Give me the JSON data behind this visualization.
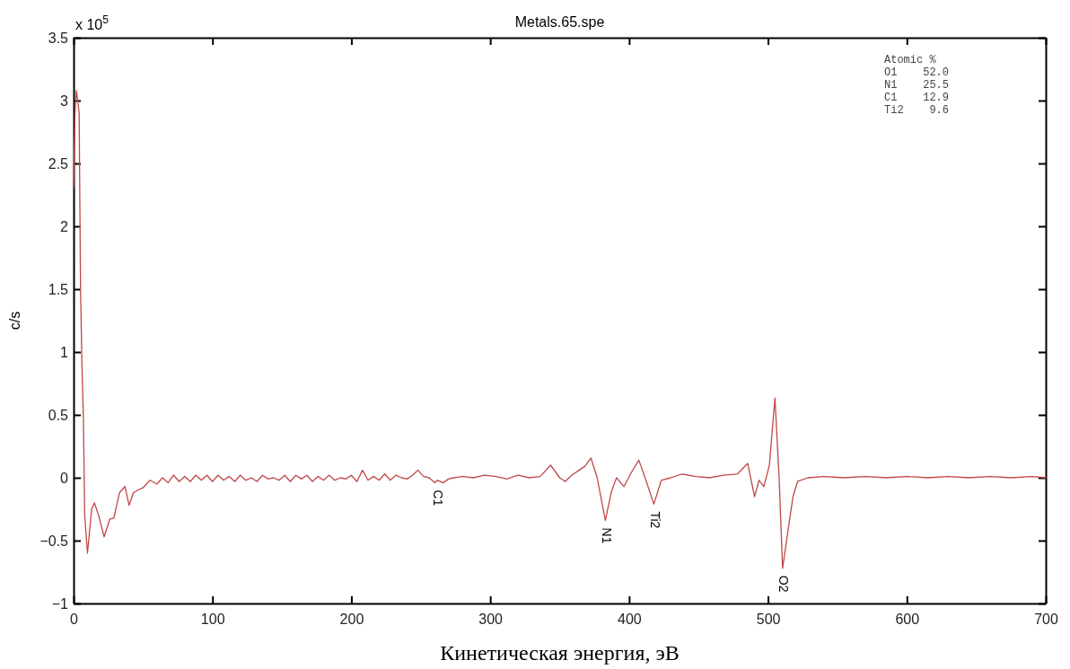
{
  "chart_data": {
    "type": "line",
    "title": "Metals.65.spe",
    "xlabel": "Кинетическая энергия, эВ",
    "ylabel": "c/s",
    "xlim": [
      0,
      700
    ],
    "xticks": [
      0,
      100,
      200,
      300,
      400,
      500,
      600,
      700
    ],
    "ylim": [
      -1,
      3.5
    ],
    "yticks": [
      -1,
      -0.5,
      0,
      0.5,
      1,
      1.5,
      2,
      2.5,
      3,
      3.5
    ],
    "grid": false,
    "marker": "none",
    "line_style": "solid",
    "annotations": [
      "x 10$^{5}$",
      "Atomic %",
      "O1    52.0",
      "N1    25.5",
      "C1    12.9",
      "Ti2    9.6",
      {
        "text": "C1",
        "x": 262,
        "y": -0.04
      },
      {
        "text": "N1",
        "x": 383,
        "y": -0.34
      },
      {
        "text": "Ti2",
        "x": 418,
        "y": -0.21
      },
      {
        "text": "O2",
        "x": 510.5,
        "y": -0.72
      }
    ],
    "series": [
      {
        "color": "#c04848",
        "x": [
          0,
          1,
          2,
          3,
          4,
          5,
          6,
          7,
          8,
          10,
          13,
          15,
          18,
          22,
          26,
          29,
          33,
          37,
          40,
          43,
          46,
          50,
          55,
          60,
          64,
          68,
          72,
          76,
          80,
          84,
          88,
          92,
          96,
          100,
          104,
          108,
          112,
          116,
          120,
          124,
          128,
          132,
          136,
          140,
          144,
          148,
          152,
          156,
          160,
          164,
          168,
          172,
          176,
          180,
          184,
          188,
          192,
          196,
          200,
          204,
          208,
          212,
          216,
          220,
          224,
          228,
          232,
          236,
          240,
          244,
          248,
          252,
          256,
          260,
          262,
          266,
          270,
          274,
          280,
          288,
          296,
          304,
          312,
          320,
          328,
          336,
          343.5,
          350,
          354,
          358.6,
          364,
          368,
          372.5,
          377,
          382.9,
          387,
          390.9,
          396.3,
          402,
          407,
          412.4,
          417.8,
          423.2,
          430,
          438,
          448,
          458,
          468,
          478,
          485.4,
          490.3,
          493.6,
          497,
          501,
          505,
          508,
          510.5,
          514.8,
          518,
          521.3,
          528.8,
          540,
          555,
          570,
          585,
          600,
          615,
          630,
          645,
          660,
          675,
          690,
          700
        ],
        "values": [
          2.3,
          2.9,
          3.08,
          3.0,
          2.9,
          1.5,
          0.9,
          0.5,
          -0.3,
          -0.6,
          -0.25,
          -0.2,
          -0.3,
          -0.47,
          -0.33,
          -0.32,
          -0.12,
          -0.07,
          -0.22,
          -0.12,
          -0.1,
          -0.08,
          -0.02,
          -0.05,
          0.0,
          -0.04,
          0.02,
          -0.03,
          0.01,
          -0.03,
          0.02,
          -0.02,
          0.02,
          -0.03,
          0.02,
          -0.02,
          0.01,
          -0.03,
          0.02,
          -0.02,
          0.0,
          -0.03,
          0.02,
          -0.01,
          0.0,
          -0.02,
          0.02,
          -0.03,
          0.02,
          -0.01,
          0.02,
          -0.03,
          0.01,
          -0.02,
          0.02,
          -0.02,
          0.0,
          -0.01,
          0.02,
          -0.03,
          0.06,
          -0.02,
          0.01,
          -0.02,
          0.03,
          -0.02,
          0.02,
          0.0,
          -0.01,
          0.02,
          0.06,
          0.01,
          0.0,
          -0.04,
          -0.02,
          -0.04,
          -0.01,
          0.0,
          0.01,
          0.0,
          0.02,
          0.01,
          -0.01,
          0.02,
          0.0,
          0.01,
          0.1,
          0.0,
          -0.03,
          0.02,
          0.06,
          0.09,
          0.157,
          0.0,
          -0.34,
          -0.12,
          0.0,
          -0.07,
          0.05,
          0.14,
          -0.03,
          -0.21,
          -0.02,
          0.0,
          0.03,
          0.01,
          0.0,
          0.02,
          0.03,
          0.114,
          -0.15,
          -0.02,
          -0.07,
          0.1,
          0.634,
          0.0,
          -0.72,
          -0.39,
          -0.15,
          -0.03,
          0.0,
          0.01,
          0.0,
          0.01,
          0.0,
          0.01,
          0.0,
          0.01,
          0.0,
          0.01,
          0.0,
          0.01,
          0.0
        ]
      }
    ]
  }
}
